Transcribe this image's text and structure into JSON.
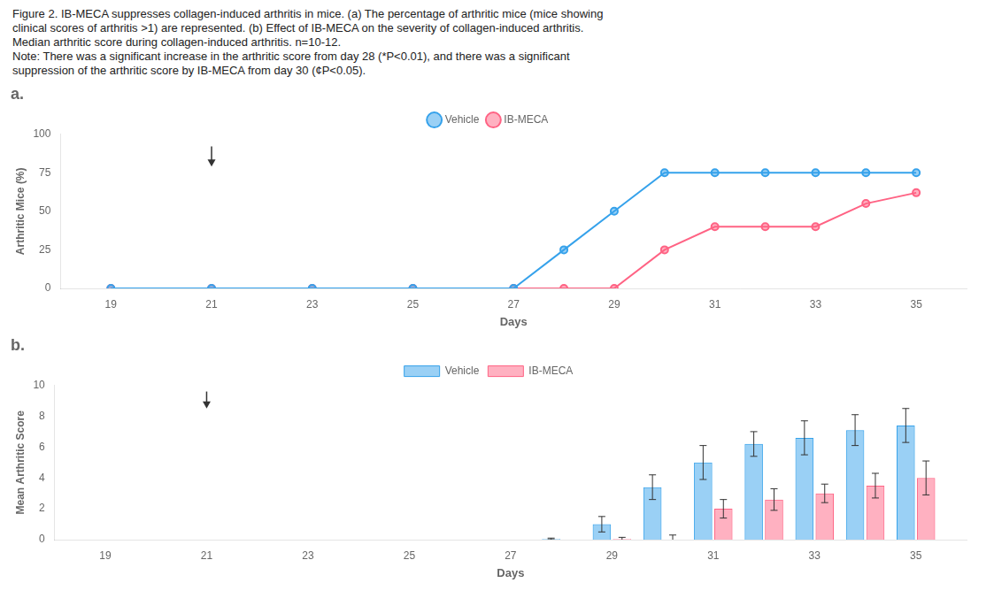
{
  "caption": [
    "Figure 2. IB-MECA suppresses collagen-induced arthritis in mice. (a) The percentage of arthritic mice (mice showing",
    "clinical scores of arthritis >1) are represented. (b) Effect of IB-MECA on the severity of collagen-induced arthritis.",
    "Median arthritic score during collagen-induced arthritis. n=10-12.",
    "Note: There was a significant increase in the arthritic score from day 28 (*P<0.01), and there was a significant",
    "suppression of the arthritic score by IB-MECA from day 30 (¢P<0.05)."
  ],
  "chart_data": [
    {
      "type": "line",
      "title": "a.",
      "x": [
        19,
        21,
        23,
        25,
        27,
        28,
        29,
        30,
        31,
        32,
        33,
        34,
        35
      ],
      "series": [
        {
          "name": "Vehicle",
          "values": [
            0,
            0,
            0,
            0,
            0,
            25,
            50,
            75,
            75,
            75,
            75,
            75,
            75
          ],
          "marker": "o",
          "line_style": "solid"
        },
        {
          "name": "IB-MECA",
          "values": [
            0,
            0,
            0,
            0,
            0,
            0,
            0,
            25,
            40,
            40,
            40,
            55,
            62
          ],
          "marker": "o",
          "line_style": "solid"
        }
      ],
      "xlabel": "Days",
      "ylabel": "Arthritic Mice (%)",
      "xlim": [
        18,
        36
      ],
      "ylim": [
        0,
        100
      ],
      "xticks": [
        19,
        21,
        23,
        25,
        27,
        29,
        31,
        33,
        35
      ],
      "yticks": [
        0,
        25,
        50,
        75,
        100
      ],
      "grid": false,
      "legend": "top",
      "annotations": [
        {
          "type": "arrow",
          "x": 21,
          "y_from": 92,
          "y_to": 79
        }
      ]
    },
    {
      "type": "bar",
      "title": "b.",
      "x": [
        28,
        29,
        30,
        31,
        32,
        33,
        34,
        35
      ],
      "series": [
        {
          "name": "Vehicle",
          "values": [
            0.05,
            1.0,
            3.4,
            5.0,
            6.2,
            6.6,
            7.1,
            7.4
          ],
          "errors": [
            0.05,
            0.5,
            0.8,
            1.1,
            0.8,
            1.1,
            1.0,
            1.1
          ]
        },
        {
          "name": "IB-MECA",
          "values": [
            0.0,
            0.05,
            0.0,
            2.0,
            2.6,
            3.0,
            3.5,
            4.0
          ],
          "errors": [
            0.0,
            0.1,
            0.3,
            0.6,
            0.7,
            0.6,
            0.8,
            1.1
          ]
        }
      ],
      "xlabel": "Days",
      "ylabel": "Mean Arthritic Score",
      "xlim": [
        18,
        36
      ],
      "ylim": [
        0,
        10
      ],
      "xticks": [
        19,
        21,
        23,
        25,
        27,
        29,
        31,
        33,
        35
      ],
      "yticks": [
        0,
        2,
        4,
        6,
        8,
        10
      ],
      "grid": false,
      "legend": "top",
      "annotations": [
        {
          "type": "arrow",
          "x": 21,
          "y_from": 9.6,
          "y_to": 8.5
        }
      ]
    }
  ]
}
